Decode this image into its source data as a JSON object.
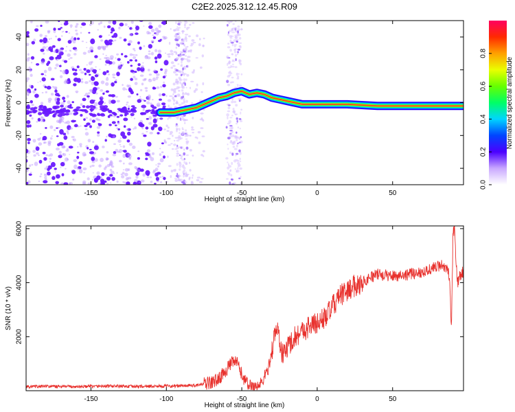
{
  "figure_title": "C2E2.2025.312.12.45.R09",
  "colors": {
    "snr_line": "#e8312d",
    "ridge_core": "#e8312d",
    "scatter_purple": "#6a1aff"
  },
  "chart_data": [
    {
      "type": "heatmap",
      "title": "C2E2.2025.312.12.45.R09",
      "xlabel": "Height of straight line (km)",
      "ylabel": "Frequency (Hz)",
      "xlim": [
        -193,
        97
      ],
      "ylim": [
        -50,
        50
      ],
      "xticks": [
        -150,
        -100,
        -50,
        0,
        50
      ],
      "xtick_labels": [
        "-150",
        "-100",
        "-50",
        "0",
        "50"
      ],
      "yticks": [
        -40,
        -20,
        0,
        20,
        40
      ],
      "ytick_labels": [
        "-40",
        "-20",
        "0",
        "20",
        "40"
      ],
      "ridge": {
        "x": [
          -104,
          -100,
          -95,
          -90,
          -85,
          -80,
          -75,
          -70,
          -65,
          -60,
          -55,
          -50,
          -45,
          -40,
          -35,
          -30,
          -25,
          -20,
          -15,
          -10,
          -5,
          0,
          10,
          20,
          40,
          60,
          80,
          97
        ],
        "y": [
          -6,
          -6,
          -6,
          -5,
          -4,
          -3,
          -1,
          1,
          3,
          4,
          6,
          7,
          5,
          6,
          5,
          3,
          2,
          1,
          0,
          -1,
          -1,
          -1,
          -1,
          -1,
          -2,
          -2,
          -2,
          -2
        ]
      },
      "colorbar": {
        "label": "Normalized spectral amplitude",
        "range": [
          0,
          1
        ],
        "ticks": [
          0,
          0.2,
          0.4,
          0.6,
          0.8
        ],
        "tick_labels": [
          "0.0",
          "0.2",
          "0.4",
          "0.6",
          "0.8"
        ]
      }
    },
    {
      "type": "line",
      "xlabel": "Height of straight line (km)",
      "ylabel": "SNR (10 * v/v)",
      "xlim": [
        -193,
        97
      ],
      "ylim": [
        0,
        6100
      ],
      "xticks": [
        -150,
        -100,
        -50,
        0,
        50
      ],
      "xtick_labels": [
        "-150",
        "-100",
        "-50",
        "0",
        "50"
      ],
      "yticks": [
        2000,
        4000,
        6000
      ],
      "ytick_labels": [
        "2000",
        "4000",
        "6000"
      ],
      "series": [
        {
          "name": "SNR",
          "x": [
            -193,
            -180,
            -160,
            -140,
            -120,
            -100,
            -90,
            -80,
            -70,
            -65,
            -60,
            -57,
            -54,
            -52,
            -50,
            -47,
            -45,
            -42,
            -38,
            -35,
            -32,
            -30,
            -28,
            -26,
            -25,
            -23,
            -20,
            -15,
            -10,
            -5,
            0,
            5,
            10,
            15,
            20,
            25,
            30,
            35,
            40,
            50,
            60,
            70,
            75,
            80,
            83,
            85,
            87,
            88,
            89,
            90,
            91,
            92,
            93,
            95,
            97
          ],
          "y": [
            150,
            160,
            150,
            170,
            160,
            170,
            180,
            200,
            300,
            450,
            800,
            1000,
            1100,
            900,
            600,
            300,
            200,
            150,
            200,
            500,
            900,
            1500,
            2100,
            2300,
            1900,
            1300,
            1600,
            2000,
            2200,
            2400,
            2500,
            2700,
            3100,
            3500,
            3700,
            3900,
            4000,
            4200,
            4300,
            4250,
            4300,
            4400,
            4500,
            4600,
            4700,
            4500,
            4400,
            3800,
            2100,
            5800,
            6000,
            4800,
            4000,
            4300,
            4400
          ]
        }
      ]
    }
  ]
}
